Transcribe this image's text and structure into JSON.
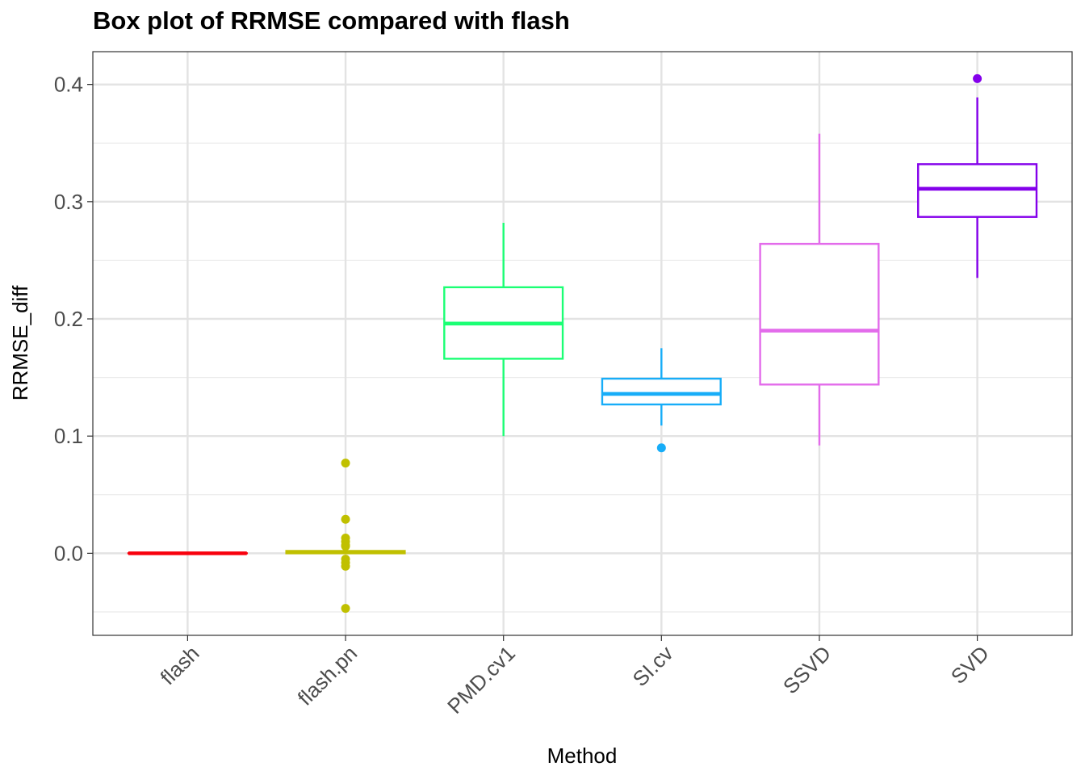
{
  "chart_data": {
    "type": "box",
    "title": "Box plot of RRMSE compared with flash",
    "xlabel": "Method",
    "ylabel": "RRMSE_diff",
    "ylim": [
      -0.07,
      0.428
    ],
    "yticks": [
      0.0,
      0.1,
      0.2,
      0.3,
      0.4
    ],
    "ytick_labels": [
      "0.0",
      "0.1",
      "0.2",
      "0.3",
      "0.4"
    ],
    "grid": true,
    "legend": "none",
    "categories": [
      "flash",
      "flash.pn",
      "PMD.cv1",
      "SI.cv",
      "SSVD",
      "SVD"
    ],
    "boxes": [
      {
        "name": "flash",
        "color": "#F8000D",
        "whisker_low": 0.0,
        "q1": 0.0,
        "median": 0.0,
        "q3": 0.0,
        "whisker_high": 0.0,
        "outliers": []
      },
      {
        "name": "flash.pn",
        "color": "#C0C000",
        "whisker_low": 0.0,
        "q1": 0.0,
        "median": 0.001,
        "q3": 0.002,
        "whisker_high": 0.002,
        "outliers": [
          0.077,
          0.029,
          0.013,
          0.01,
          0.007,
          0.006,
          -0.005,
          -0.008,
          -0.011,
          -0.047
        ]
      },
      {
        "name": "PMD.cv1",
        "color": "#1BFF74",
        "whisker_low": 0.1,
        "q1": 0.166,
        "median": 0.196,
        "q3": 0.227,
        "whisker_high": 0.282,
        "outliers": []
      },
      {
        "name": "SI.cv",
        "color": "#17ADF8",
        "whisker_low": 0.109,
        "q1": 0.127,
        "median": 0.136,
        "q3": 0.149,
        "whisker_high": 0.175,
        "outliers": [
          0.09
        ]
      },
      {
        "name": "SSVD",
        "color": "#E36BEB",
        "whisker_low": 0.092,
        "q1": 0.144,
        "median": 0.19,
        "q3": 0.264,
        "whisker_high": 0.358,
        "outliers": []
      },
      {
        "name": "SVD",
        "color": "#8400EB",
        "whisker_low": 0.235,
        "q1": 0.287,
        "median": 0.311,
        "q3": 0.332,
        "whisker_high": 0.389,
        "outliers": [
          0.405
        ]
      }
    ]
  }
}
